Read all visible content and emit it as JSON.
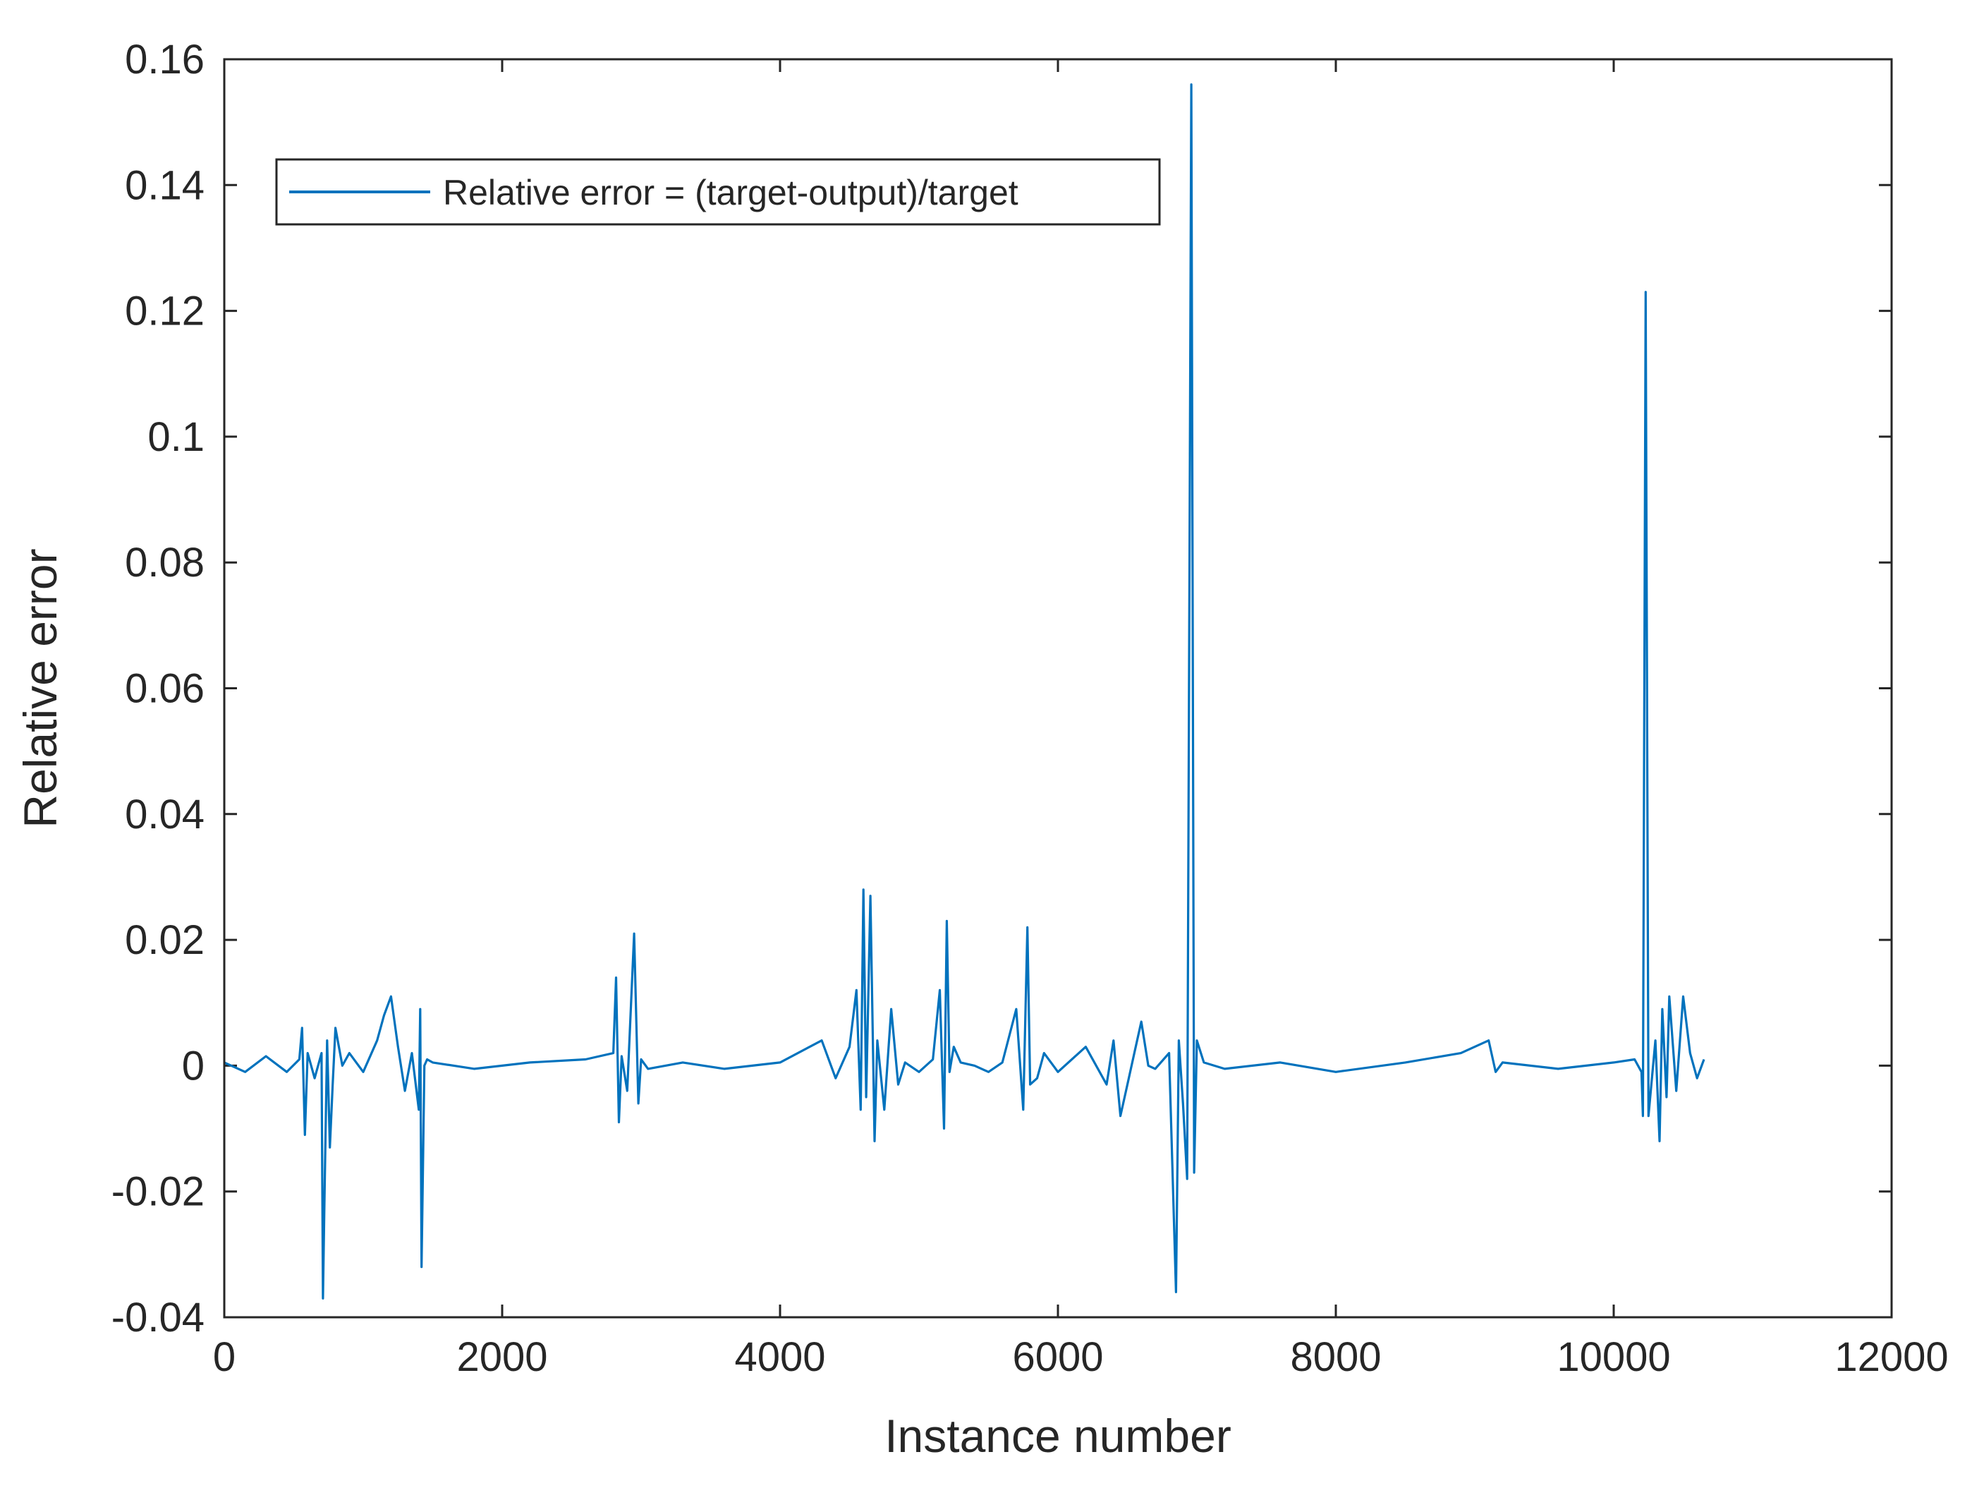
{
  "colors": {
    "series": "#0072bd",
    "axis": "#262626",
    "background": "#ffffff"
  },
  "chart_data": {
    "type": "line",
    "title": "",
    "xlabel": "Instance number",
    "ylabel": "Relative error",
    "xlim": [
      0,
      12000
    ],
    "ylim": [
      -0.04,
      0.16
    ],
    "xticks": [
      0,
      2000,
      4000,
      6000,
      8000,
      10000,
      12000
    ],
    "xtick_labels": [
      "0",
      "2000",
      "4000",
      "6000",
      "8000",
      "10000",
      "12000"
    ],
    "yticks": [
      -0.04,
      -0.02,
      0,
      0.02,
      0.04,
      0.06,
      0.08,
      0.1,
      0.12,
      0.14,
      0.16
    ],
    "ytick_labels": [
      "-0.04",
      "-0.02",
      "0",
      "0.02",
      "0.04",
      "0.06",
      "0.08",
      "0.1",
      "0.12",
      "0.14",
      "0.16"
    ],
    "grid": false,
    "legend_position": "top-left",
    "series": [
      {
        "name": "Relative error = (target-output)/target",
        "x": [
          0,
          150,
          300,
          450,
          540,
          560,
          580,
          600,
          650,
          700,
          710,
          720,
          740,
          760,
          780,
          800,
          850,
          900,
          1000,
          1100,
          1150,
          1200,
          1250,
          1300,
          1350,
          1400,
          1410,
          1420,
          1440,
          1460,
          1500,
          1800,
          2200,
          2600,
          2800,
          2820,
          2840,
          2860,
          2900,
          2950,
          2980,
          3000,
          3050,
          3300,
          3600,
          4000,
          4300,
          4400,
          4500,
          4550,
          4580,
          4600,
          4620,
          4650,
          4680,
          4700,
          4750,
          4800,
          4850,
          4900,
          5000,
          5100,
          5150,
          5180,
          5200,
          5220,
          5250,
          5300,
          5400,
          5500,
          5600,
          5700,
          5750,
          5780,
          5800,
          5850,
          5900,
          6000,
          6200,
          6350,
          6400,
          6450,
          6500,
          6550,
          6600,
          6650,
          6700,
          6800,
          6850,
          6870,
          6900,
          6930,
          6960,
          6980,
          7000,
          7050,
          7200,
          7600,
          8000,
          8500,
          8900,
          9100,
          9150,
          9200,
          9600,
          10000,
          10150,
          10200,
          10210,
          10230,
          10250,
          10300,
          10330,
          10350,
          10380,
          10400,
          10450,
          10500,
          10550,
          10600,
          10650
        ],
        "y": [
          0.0005,
          -0.001,
          0.0015,
          -0.001,
          0.001,
          0.006,
          -0.011,
          0.002,
          -0.002,
          0.002,
          -0.037,
          -0.023,
          0.004,
          -0.013,
          -0.003,
          0.006,
          0.0,
          0.002,
          -0.001,
          0.004,
          0.008,
          0.011,
          0.003,
          -0.004,
          0.002,
          -0.007,
          0.009,
          -0.032,
          0.0,
          0.001,
          0.0005,
          -0.0005,
          0.0005,
          0.001,
          0.002,
          0.014,
          -0.009,
          0.0015,
          -0.004,
          0.021,
          -0.006,
          0.001,
          -0.0005,
          0.0005,
          -0.0005,
          0.0005,
          0.004,
          -0.002,
          0.003,
          0.012,
          -0.007,
          0.028,
          -0.005,
          0.027,
          -0.012,
          0.004,
          -0.007,
          0.009,
          -0.003,
          0.0005,
          -0.001,
          0.001,
          0.012,
          -0.01,
          0.023,
          -0.001,
          0.003,
          0.0005,
          0.0,
          -0.001,
          0.0005,
          0.009,
          -0.007,
          0.022,
          -0.003,
          -0.002,
          0.002,
          -0.001,
          0.003,
          -0.003,
          0.004,
          -0.008,
          -0.003,
          0.002,
          0.007,
          0.0,
          -0.0005,
          0.002,
          -0.036,
          0.004,
          -0.006,
          -0.018,
          0.156,
          -0.017,
          0.004,
          0.0005,
          -0.0005,
          0.0005,
          -0.001,
          0.0005,
          0.002,
          0.004,
          -0.001,
          0.0005,
          -0.0005,
          0.0005,
          0.001,
          -0.001,
          -0.008,
          0.123,
          -0.008,
          0.004,
          -0.012,
          0.009,
          -0.005,
          0.011,
          -0.004,
          0.011,
          0.002,
          -0.002,
          0.001
        ]
      }
    ]
  }
}
